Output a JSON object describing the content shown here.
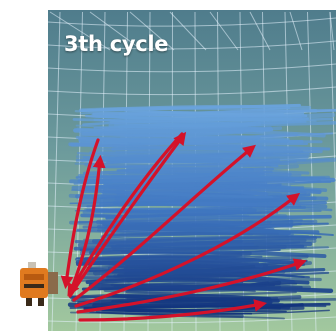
{
  "figure": {
    "cycle_label": "3th cycle"
  },
  "colors": {
    "frame_top": "#4f7c8c",
    "frame_bottom": "#9ec49a",
    "gridline": "#e8f4ff",
    "stroke_light": "#6aa3dc",
    "stroke_mid": "#3f76c0",
    "stroke_dark": "#0f2f78",
    "arrow": "#d4122a",
    "device_body": "#e07a1f",
    "device_dark": "#3a2a1a"
  },
  "icons": {
    "device": "vacuum-robot-icon",
    "arrows": "flow-arrow-icon"
  }
}
